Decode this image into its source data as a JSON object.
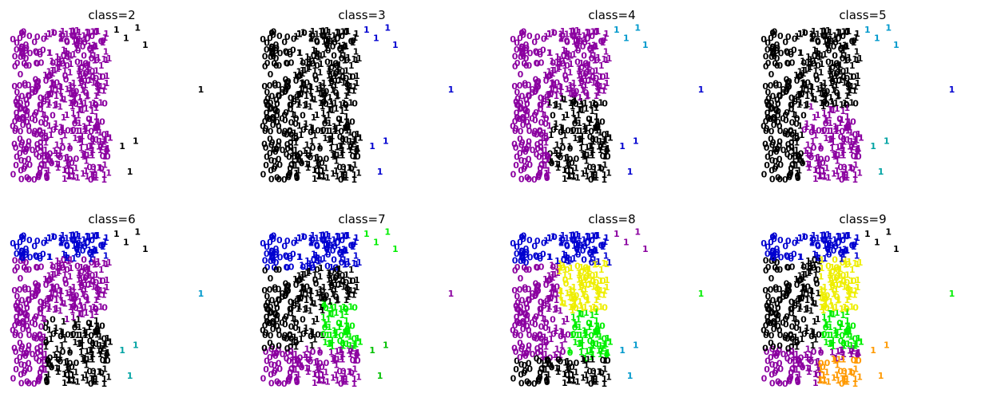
{
  "chart_data": {
    "type": "scatter",
    "marker": "digit-label",
    "axes_visible": false,
    "grid": false,
    "legend": "none",
    "labels": [
      "0",
      "1"
    ],
    "points": [],
    "panels": [
      {
        "title": "class=2",
        "palette": [
          "#8b00a0",
          "#000000"
        ]
      },
      {
        "title": "class=3",
        "palette": [
          "#000000",
          "#8b00a0",
          "#0000d0"
        ]
      },
      {
        "title": "class=4",
        "palette": [
          "#8b00a0",
          "#000000",
          "#0099cc",
          "#0000d0"
        ]
      },
      {
        "title": "class=5",
        "palette": [
          "#000000",
          "#8b00a0",
          "#0099cc",
          "#0000d0",
          "#00a3a3"
        ]
      },
      {
        "title": "class=6",
        "palette": [
          "#0000d0",
          "#8b00a0",
          "#000000",
          "#0099cc",
          "#00c000",
          "#00a3a3"
        ]
      },
      {
        "title": "class=7",
        "palette": [
          "#0000d0",
          "#000000",
          "#00ee00",
          "#8b00a0",
          "#0099cc",
          "#00c000",
          "#00a3a3"
        ]
      },
      {
        "title": "class=8",
        "palette": [
          "#0000d0",
          "#eeee00",
          "#8b00a0",
          "#00ee00",
          "#000000",
          "#0099cc",
          "#00c000",
          "#00a3a3"
        ]
      },
      {
        "title": "class=9",
        "palette": [
          "#0000d0",
          "#eeee00",
          "#000000",
          "#00ee00",
          "#8b00a0",
          "#ff9900",
          "#0099cc",
          "#00c000",
          "#00a3a3"
        ]
      }
    ]
  }
}
